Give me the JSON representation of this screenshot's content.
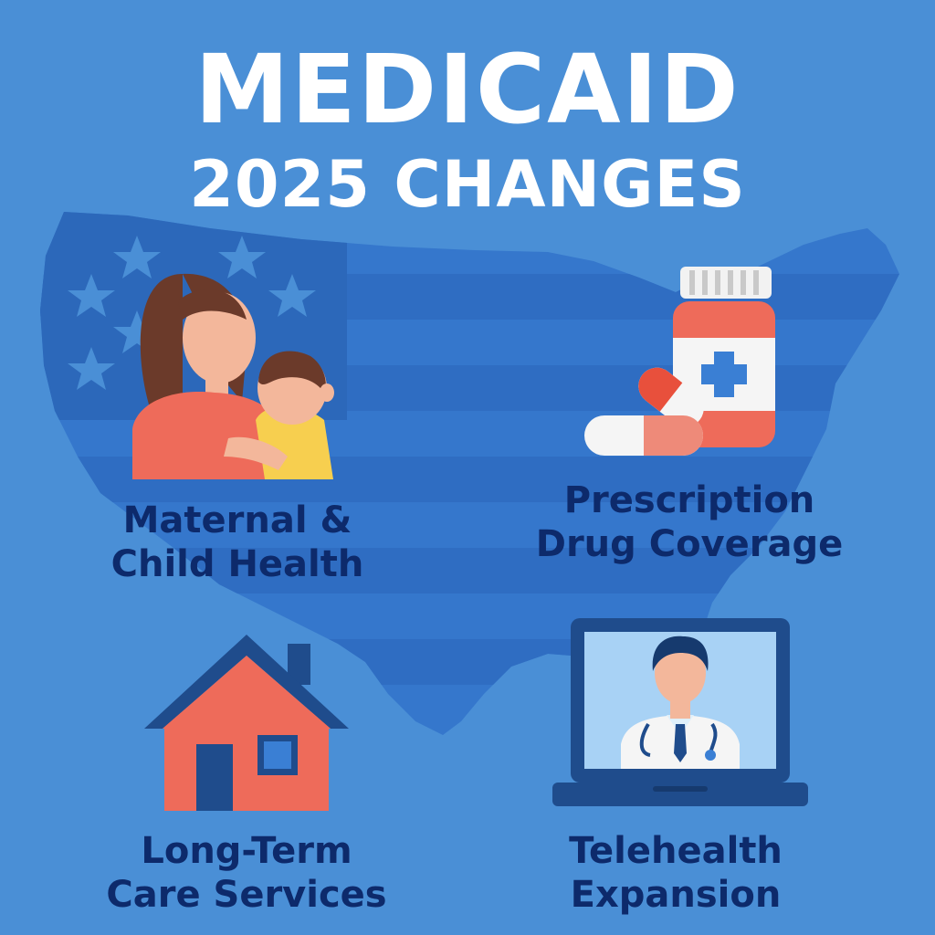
{
  "title": {
    "line1": "MEDICAID",
    "line2": "2025 CHANGES"
  },
  "colors": {
    "background": "#4a8fd6",
    "map": "#2f6fc4",
    "title_text": "#ffffff",
    "caption_text": "#0d2a6b",
    "accent_red": "#ee6b5a",
    "navy": "#1f4c8c"
  },
  "features": [
    {
      "icon": "mother-child-icon",
      "line1": "Maternal &",
      "line2": "Child Health"
    },
    {
      "icon": "pill-bottle-icon",
      "line1": "Prescription",
      "line2": "Drug Coverage"
    },
    {
      "icon": "house-icon",
      "line1": "Long-Term",
      "line2": "Care Services"
    },
    {
      "icon": "laptop-doctor-icon",
      "line1": "Telehealth",
      "line2": "Expansion"
    }
  ]
}
